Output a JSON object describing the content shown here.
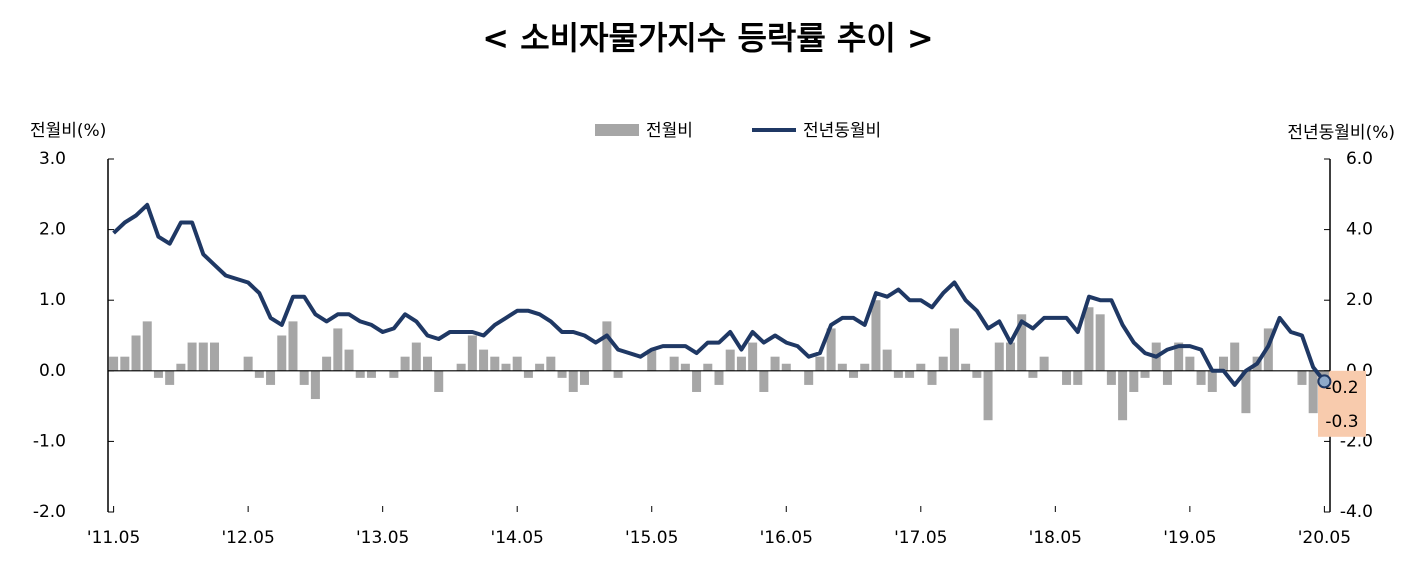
{
  "chart_data": {
    "type": "bar-line",
    "title": "< 소비자물가지수 등락률 추이 >",
    "y_label": "전월비(%)",
    "y2_label": "전년동월비(%)",
    "categories": [
      "'11.05",
      null,
      null,
      null,
      null,
      null,
      null,
      null,
      null,
      null,
      null,
      null,
      "'12.05",
      null,
      null,
      null,
      null,
      null,
      null,
      null,
      null,
      null,
      null,
      null,
      "'13.05",
      null,
      null,
      null,
      null,
      null,
      null,
      null,
      null,
      null,
      null,
      null,
      "'14.05",
      null,
      null,
      null,
      null,
      null,
      null,
      null,
      null,
      null,
      null,
      null,
      "'15.05",
      null,
      null,
      null,
      null,
      null,
      null,
      null,
      null,
      null,
      null,
      null,
      "'16.05",
      null,
      null,
      null,
      null,
      null,
      null,
      null,
      null,
      null,
      null,
      null,
      "'17.05",
      null,
      null,
      null,
      null,
      null,
      null,
      null,
      null,
      null,
      null,
      null,
      "'18.05",
      null,
      null,
      null,
      null,
      null,
      null,
      null,
      null,
      null,
      null,
      null,
      "'19.05",
      null,
      null,
      null,
      null,
      null,
      null,
      null,
      null,
      null,
      null,
      null,
      "'20.05"
    ],
    "series": [
      {
        "name": "전월비",
        "type": "bar",
        "color": "#a6a6a6",
        "values": [
          0.2,
          0.2,
          0.5,
          0.7,
          -0.1,
          -0.2,
          0.1,
          0.4,
          0.4,
          0.4,
          0.0,
          0.0,
          0.2,
          -0.1,
          -0.2,
          0.5,
          0.7,
          -0.2,
          -0.4,
          0.2,
          0.6,
          0.3,
          -0.1,
          -0.1,
          0.0,
          -0.1,
          0.2,
          0.4,
          0.2,
          -0.3,
          0.0,
          0.1,
          0.5,
          0.3,
          0.2,
          0.1,
          0.2,
          -0.1,
          0.1,
          0.2,
          -0.1,
          -0.3,
          -0.2,
          0.0,
          0.7,
          -0.1,
          0.0,
          0.0,
          0.3,
          0.0,
          0.2,
          0.1,
          -0.3,
          0.1,
          -0.2,
          0.3,
          0.2,
          0.4,
          -0.3,
          0.2,
          0.1,
          0.0,
          -0.2,
          0.2,
          0.6,
          0.1,
          -0.1,
          0.1,
          1.0,
          0.3,
          -0.1,
          -0.1,
          0.1,
          -0.2,
          0.2,
          0.6,
          0.1,
          -0.1,
          -0.7,
          0.4,
          0.4,
          0.8,
          -0.1,
          0.2,
          0.0,
          -0.2,
          -0.2,
          0.9,
          0.8,
          -0.2,
          -0.7,
          -0.3,
          -0.1,
          0.4,
          -0.2,
          0.4,
          0.2,
          -0.2,
          -0.3,
          0.2,
          0.4,
          -0.6,
          0.2,
          0.6,
          0.0,
          0.0,
          -0.2,
          -0.6,
          -0.2
        ]
      },
      {
        "name": "전년동월비",
        "type": "line",
        "axis": "y2",
        "color": "#1f3864",
        "values": [
          3.9,
          4.2,
          4.4,
          4.7,
          3.8,
          3.6,
          4.2,
          4.2,
          3.3,
          3.0,
          2.7,
          2.6,
          2.5,
          2.2,
          1.5,
          1.3,
          2.1,
          2.1,
          1.6,
          1.4,
          1.6,
          1.6,
          1.4,
          1.3,
          1.1,
          1.2,
          1.6,
          1.4,
          1.0,
          0.9,
          1.1,
          1.1,
          1.1,
          1.0,
          1.3,
          1.5,
          1.7,
          1.7,
          1.6,
          1.4,
          1.1,
          1.1,
          1.0,
          0.8,
          1.0,
          0.6,
          0.5,
          0.4,
          0.6,
          0.7,
          0.7,
          0.7,
          0.5,
          0.8,
          0.8,
          1.1,
          0.6,
          1.1,
          0.8,
          1.0,
          0.8,
          0.7,
          0.4,
          0.5,
          1.3,
          1.5,
          1.5,
          1.3,
          2.2,
          2.1,
          2.3,
          2.0,
          2.0,
          1.8,
          2.2,
          2.5,
          2.0,
          1.7,
          1.2,
          1.4,
          0.8,
          1.4,
          1.2,
          1.5,
          1.5,
          1.5,
          1.1,
          2.1,
          2.0,
          2.0,
          1.3,
          0.8,
          0.5,
          0.4,
          0.6,
          0.7,
          0.7,
          0.6,
          0.0,
          0.0,
          -0.4,
          0.0,
          0.2,
          0.7,
          1.5,
          1.1,
          1.0,
          0.1,
          -0.3
        ]
      }
    ],
    "ylim": [
      -2,
      3
    ],
    "yticks": [
      {
        "value": -2,
        "label": "-2.0"
      },
      {
        "value": -1,
        "label": "-1.0"
      },
      {
        "value": 0,
        "label": "0.0"
      },
      {
        "value": 1,
        "label": "1.0"
      },
      {
        "value": 2,
        "label": "2.0"
      },
      {
        "value": 3,
        "label": "3.0"
      }
    ],
    "y2lim": [
      -4,
      6
    ],
    "y2ticks": [
      {
        "value": -4,
        "label": "-4.0"
      },
      {
        "value": -2,
        "label": "-2.0"
      },
      {
        "value": 0,
        "label": "0.0"
      },
      {
        "value": 2,
        "label": "2.0"
      },
      {
        "value": 4,
        "label": "4.0"
      },
      {
        "value": 6,
        "label": "6.0"
      }
    ],
    "highlight_color": "#f8cbad",
    "legend": "top"
  }
}
